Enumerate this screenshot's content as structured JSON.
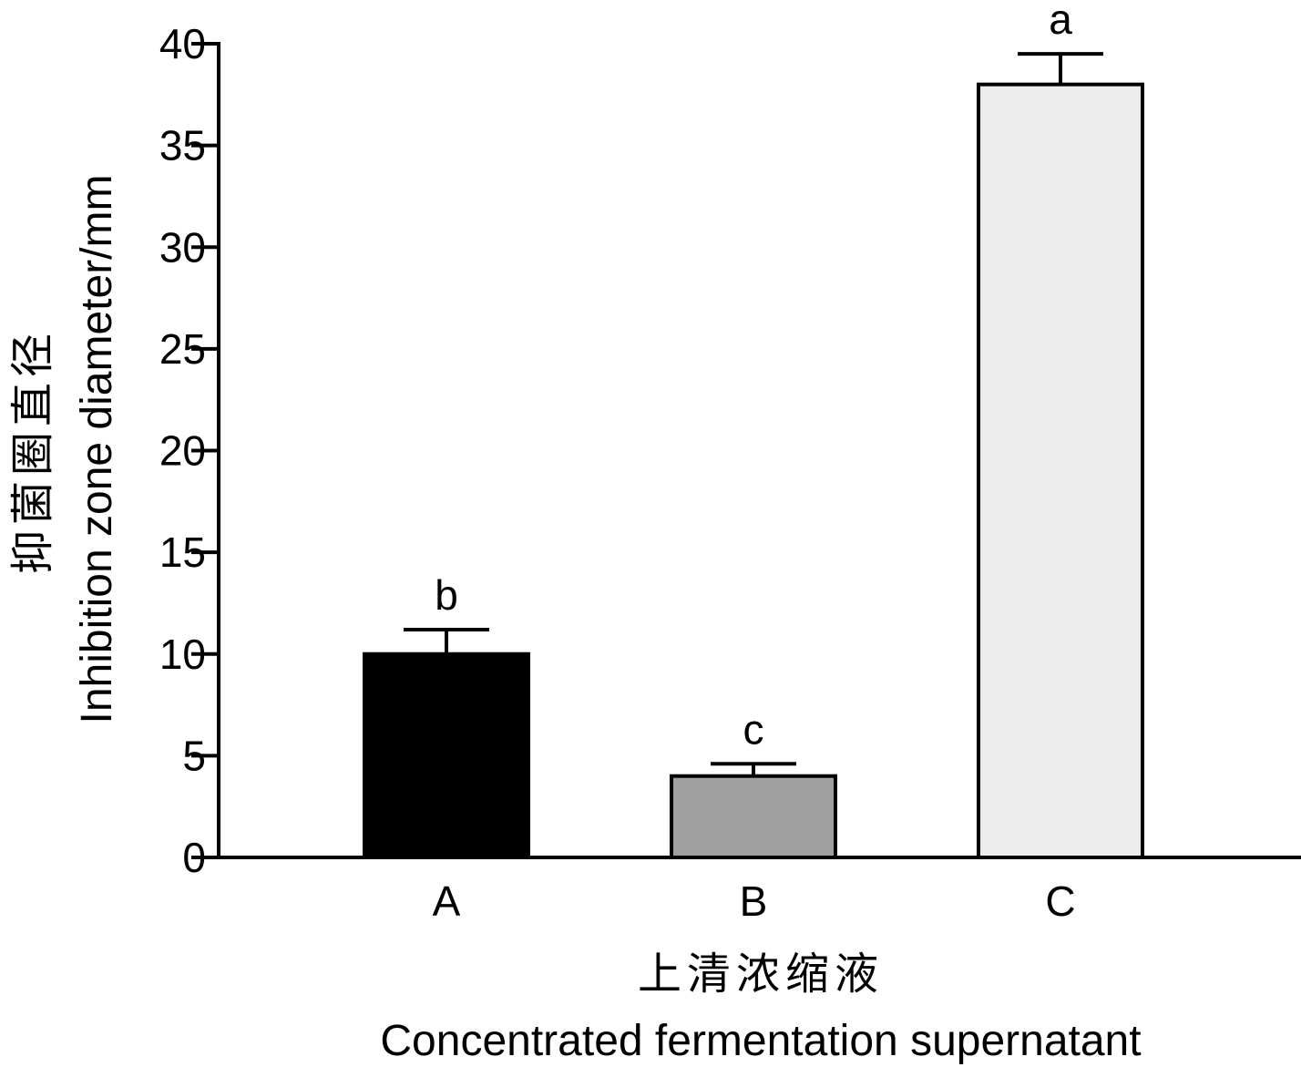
{
  "chart_data": {
    "type": "bar",
    "categories": [
      "A",
      "B",
      "C"
    ],
    "values": [
      10,
      4,
      38
    ],
    "error_upper": [
      1.2,
      0.6,
      1.5
    ],
    "significance_labels": [
      "b",
      "c",
      "a"
    ],
    "bar_colors": [
      "#000000",
      "#a0a0a0",
      "#ececec"
    ],
    "ylim": [
      0,
      40
    ],
    "yticks": [
      0,
      5,
      10,
      15,
      20,
      25,
      30,
      35,
      40
    ],
    "ylabel_zh": "抑菌圈直径",
    "ylabel_en": "Inhibition zone diameter/mm",
    "xlabel_zh": "上清浓缩液",
    "xlabel_en": "Concentrated fermentation supernatant",
    "grid": false,
    "legend": "none"
  }
}
